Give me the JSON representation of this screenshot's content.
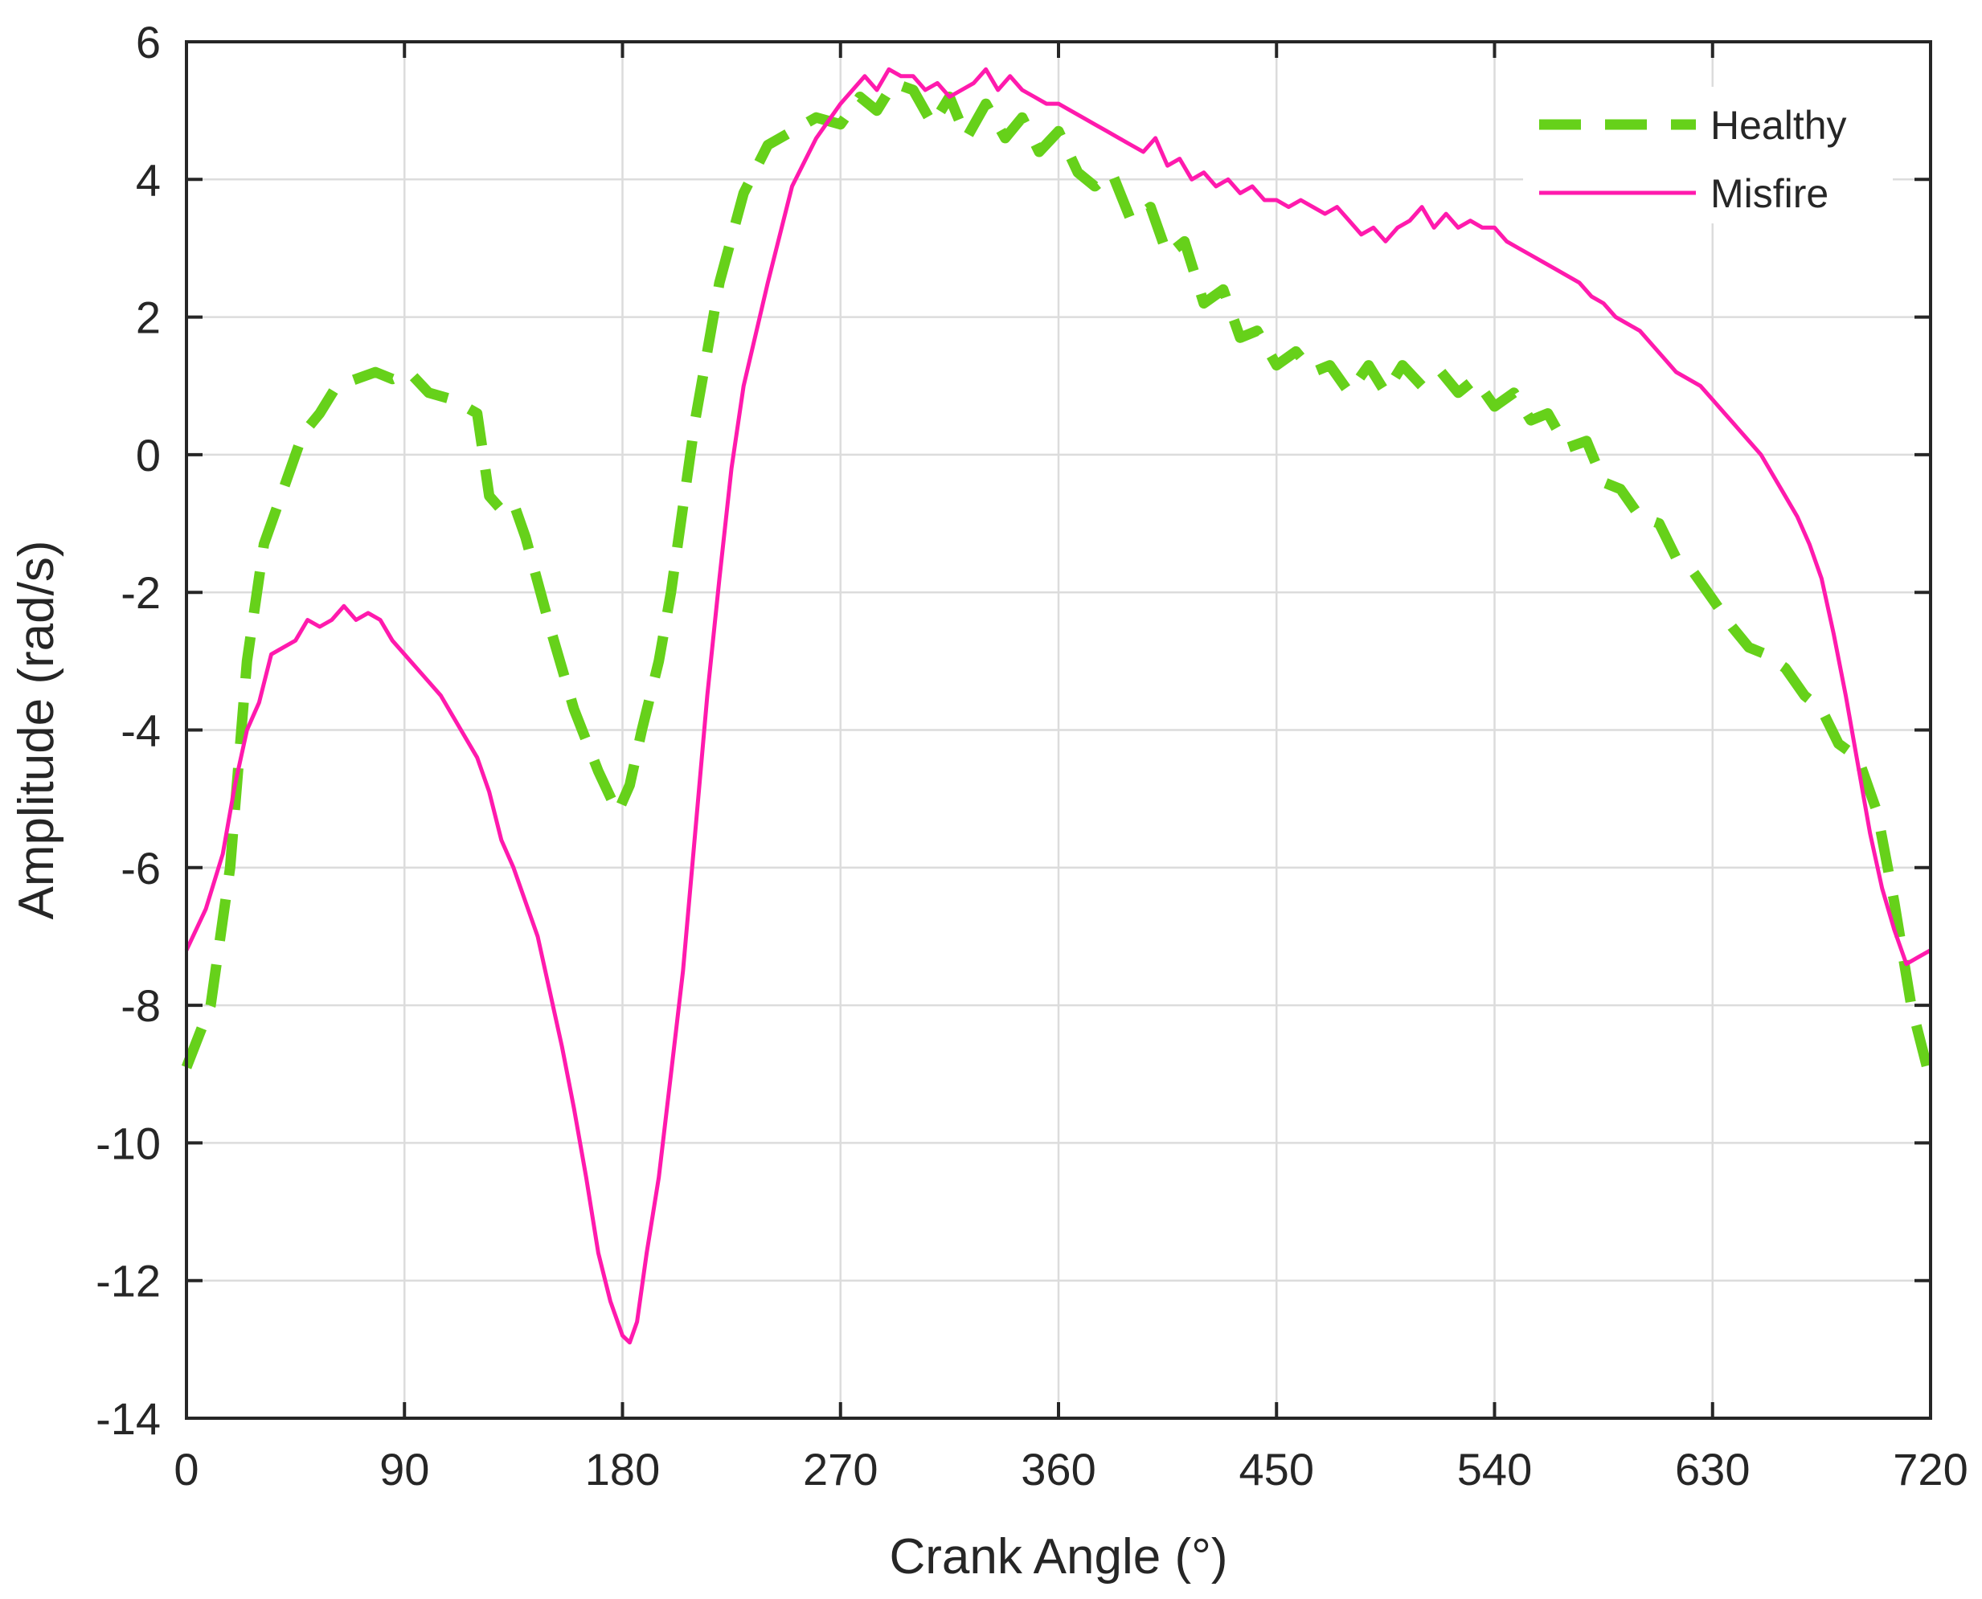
{
  "chart_data": {
    "type": "line",
    "title": "",
    "xlabel": "Crank Angle (°)",
    "ylabel": "Amplitude (rad/s)",
    "xlim": [
      0,
      720
    ],
    "ylim": [
      -14,
      6
    ],
    "xticks": [
      0,
      90,
      180,
      270,
      360,
      450,
      540,
      630,
      720
    ],
    "yticks": [
      -14,
      -12,
      -10,
      -8,
      -6,
      -4,
      -2,
      0,
      2,
      4,
      6
    ],
    "grid": true,
    "legend_position": "top-right",
    "series": [
      {
        "name": "Healthy",
        "color": "#66d11a",
        "style": "dashed",
        "x": [
          0,
          10,
          18,
          25,
          32,
          40,
          48,
          55,
          62,
          70,
          78,
          85,
          92,
          100,
          110,
          120,
          125,
          130,
          135,
          140,
          150,
          160,
          170,
          178,
          183,
          188,
          195,
          200,
          210,
          220,
          230,
          240,
          250,
          260,
          270,
          278,
          285,
          292,
          300,
          308,
          315,
          322,
          330,
          338,
          345,
          352,
          360,
          368,
          375,
          382,
          390,
          398,
          405,
          412,
          420,
          428,
          435,
          442,
          450,
          458,
          465,
          472,
          480,
          488,
          495,
          502,
          510,
          518,
          525,
          532,
          540,
          548,
          555,
          562,
          570,
          578,
          585,
          592,
          600,
          608,
          615,
          622,
          630,
          638,
          645,
          652,
          660,
          668,
          675,
          682,
          690,
          698,
          705,
          712,
          720
        ],
        "y": [
          -8.9,
          -8.0,
          -6.0,
          -3.0,
          -1.3,
          -0.5,
          0.3,
          0.6,
          1.0,
          1.1,
          1.2,
          1.1,
          1.2,
          0.9,
          0.8,
          0.6,
          -0.6,
          -0.8,
          -0.7,
          -1.2,
          -2.5,
          -3.7,
          -4.6,
          -5.2,
          -4.8,
          -4.0,
          -3.0,
          -2.0,
          0.5,
          2.5,
          3.8,
          4.5,
          4.7,
          4.9,
          4.8,
          5.2,
          5.0,
          5.4,
          5.3,
          4.8,
          5.2,
          4.6,
          5.1,
          4.6,
          4.9,
          4.4,
          4.7,
          4.1,
          3.9,
          4.1,
          3.4,
          3.6,
          2.9,
          3.1,
          2.2,
          2.4,
          1.7,
          1.8,
          1.3,
          1.5,
          1.2,
          1.3,
          0.9,
          1.3,
          0.9,
          1.3,
          1.0,
          1.2,
          0.9,
          1.1,
          0.7,
          0.9,
          0.5,
          0.6,
          0.1,
          0.2,
          -0.4,
          -0.5,
          -0.9,
          -1.0,
          -1.5,
          -1.7,
          -2.1,
          -2.5,
          -2.8,
          -2.9,
          -3.1,
          -3.5,
          -3.7,
          -4.2,
          -4.4,
          -5.2,
          -6.5,
          -8.0,
          -9.1
        ]
      },
      {
        "name": "Misfire",
        "color": "#ff1aad",
        "style": "solid",
        "x": [
          0,
          8,
          15,
          20,
          25,
          30,
          35,
          40,
          45,
          50,
          55,
          60,
          65,
          70,
          75,
          80,
          85,
          90,
          95,
          100,
          105,
          110,
          115,
          120,
          125,
          130,
          135,
          140,
          145,
          150,
          155,
          160,
          165,
          170,
          175,
          180,
          183,
          186,
          190,
          195,
          200,
          205,
          210,
          215,
          220,
          225,
          230,
          240,
          250,
          260,
          270,
          275,
          280,
          285,
          290,
          295,
          300,
          305,
          310,
          315,
          320,
          325,
          330,
          335,
          340,
          345,
          350,
          355,
          360,
          365,
          370,
          375,
          380,
          385,
          390,
          395,
          400,
          405,
          410,
          415,
          420,
          425,
          430,
          435,
          440,
          445,
          450,
          455,
          460,
          465,
          470,
          475,
          480,
          485,
          490,
          495,
          500,
          505,
          510,
          515,
          520,
          525,
          530,
          535,
          540,
          545,
          550,
          555,
          560,
          565,
          570,
          575,
          580,
          585,
          590,
          595,
          600,
          605,
          610,
          615,
          620,
          625,
          630,
          635,
          640,
          645,
          650,
          655,
          660,
          665,
          670,
          675,
          680,
          685,
          690,
          695,
          700,
          705,
          710,
          715,
          720
        ],
        "y": [
          -7.2,
          -6.6,
          -5.8,
          -4.8,
          -4.0,
          -3.6,
          -2.9,
          -2.8,
          -2.7,
          -2.4,
          -2.5,
          -2.4,
          -2.2,
          -2.4,
          -2.3,
          -2.4,
          -2.7,
          -2.9,
          -3.1,
          -3.3,
          -3.5,
          -3.8,
          -4.1,
          -4.4,
          -4.9,
          -5.6,
          -6.0,
          -6.5,
          -7.0,
          -7.8,
          -8.6,
          -9.5,
          -10.5,
          -11.6,
          -12.3,
          -12.8,
          -12.9,
          -12.6,
          -11.6,
          -10.5,
          -9.0,
          -7.5,
          -5.5,
          -3.5,
          -1.8,
          -0.2,
          1.0,
          2.5,
          3.9,
          4.6,
          5.1,
          5.3,
          5.5,
          5.3,
          5.6,
          5.5,
          5.5,
          5.3,
          5.4,
          5.2,
          5.3,
          5.4,
          5.6,
          5.3,
          5.5,
          5.3,
          5.2,
          5.1,
          5.1,
          5.0,
          4.9,
          4.8,
          4.7,
          4.6,
          4.5,
          4.4,
          4.6,
          4.2,
          4.3,
          4.0,
          4.1,
          3.9,
          4.0,
          3.8,
          3.9,
          3.7,
          3.7,
          3.6,
          3.7,
          3.6,
          3.5,
          3.6,
          3.4,
          3.2,
          3.3,
          3.1,
          3.3,
          3.4,
          3.6,
          3.3,
          3.5,
          3.3,
          3.4,
          3.3,
          3.3,
          3.1,
          3.0,
          2.9,
          2.8,
          2.7,
          2.6,
          2.5,
          2.3,
          2.2,
          2.0,
          1.9,
          1.8,
          1.6,
          1.4,
          1.2,
          1.1,
          1.0,
          0.8,
          0.6,
          0.4,
          0.2,
          0.0,
          -0.3,
          -0.6,
          -0.9,
          -1.3,
          -1.8,
          -2.6,
          -3.5,
          -4.5,
          -5.5,
          -6.3,
          -6.9,
          -7.4,
          -7.3,
          -7.2
        ]
      }
    ]
  }
}
